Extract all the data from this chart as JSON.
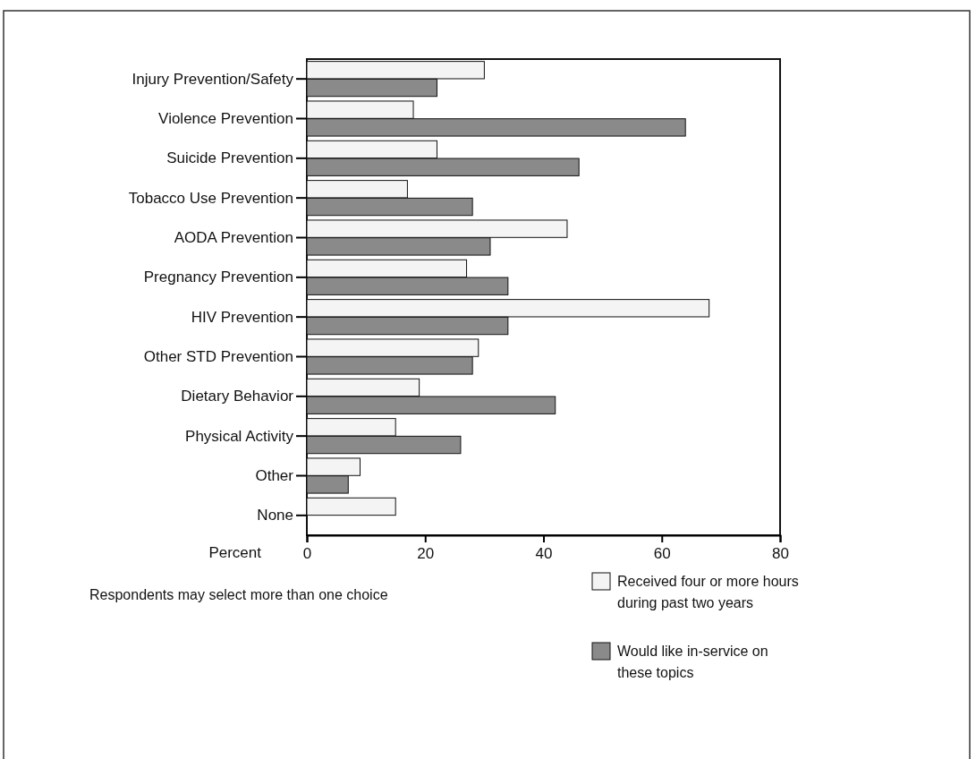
{
  "chart_data": {
    "type": "bar",
    "orientation": "horizontal",
    "xlabel": "Percent",
    "categories": [
      "Injury Prevention/Safety",
      "Violence Prevention",
      "Suicide Prevention",
      "Tobacco Use Prevention",
      "AODA Prevention",
      "Pregnancy Prevention",
      "HIV Prevention",
      "Other STD Prevention",
      "Dietary Behavior",
      "Physical Activity",
      "Other",
      "None"
    ],
    "series": [
      {
        "name": "Received four or more hours during past two years",
        "color": "#f4f4f4",
        "values": [
          30,
          18,
          22,
          17,
          44,
          27,
          68,
          29,
          19,
          15,
          9,
          15
        ]
      },
      {
        "name": "Would like in-service on these topics",
        "color": "#8a8a8a",
        "values": [
          22,
          64,
          46,
          28,
          31,
          34,
          34,
          28,
          42,
          26,
          7,
          null
        ]
      }
    ],
    "xlim": [
      0,
      80
    ],
    "xticks": [
      0,
      20,
      40,
      60,
      80
    ],
    "grid": false,
    "legend": "bottom right",
    "annotations": [
      "Respondents may select more than one choice"
    ]
  }
}
